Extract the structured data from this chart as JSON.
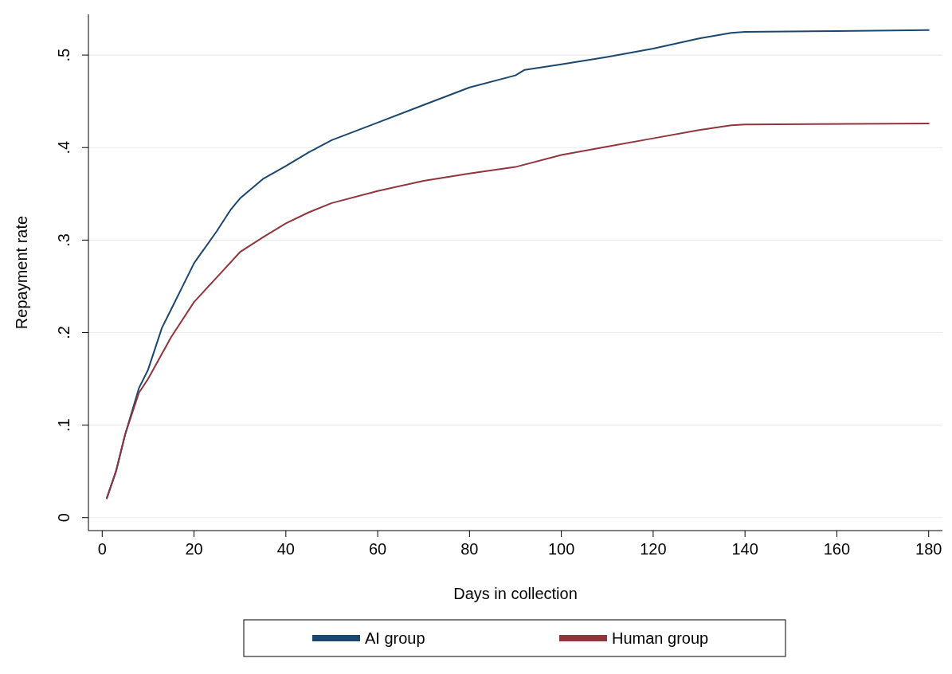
{
  "chart_data": {
    "type": "line",
    "xlabel": "Days in collection",
    "ylabel": "Repayment rate",
    "xlim": [
      -3,
      183
    ],
    "xticks": [
      0,
      20,
      40,
      60,
      80,
      100,
      120,
      140,
      160,
      180
    ],
    "ylim": [
      -0.014,
      0.544
    ],
    "yticks": [
      0,
      {
        "value": 0.1,
        "label": ".1"
      },
      {
        "value": 0.2,
        "label": ".2"
      },
      {
        "value": 0.3,
        "label": ".3"
      },
      {
        "value": 0.4,
        "label": ".4"
      },
      {
        "value": 0.5,
        "label": ".5"
      }
    ],
    "grid": "y",
    "legend": "bottom",
    "line_style": "solid",
    "marker": "none",
    "series": [
      {
        "name": "AI group",
        "color": "#1a476f",
        "x": [
          1,
          3,
          5,
          8,
          10,
          13,
          15,
          18,
          20,
          25,
          28,
          30,
          35,
          40,
          45,
          50,
          60,
          70,
          80,
          90,
          92,
          100,
          110,
          120,
          130,
          137,
          140,
          160,
          180
        ],
        "values": [
          0.021,
          0.05,
          0.09,
          0.14,
          0.16,
          0.205,
          0.225,
          0.255,
          0.275,
          0.31,
          0.333,
          0.345,
          0.366,
          0.38,
          0.395,
          0.408,
          0.427,
          0.446,
          0.465,
          0.478,
          0.484,
          0.49,
          0.498,
          0.507,
          0.518,
          0.524,
          0.525,
          0.526,
          0.527
        ]
      },
      {
        "name": "Human group",
        "color": "#90353b",
        "x": [
          1,
          3,
          5,
          8,
          10,
          15,
          20,
          25,
          30,
          35,
          40,
          45,
          50,
          60,
          70,
          80,
          90,
          100,
          110,
          120,
          130,
          137,
          140,
          180
        ],
        "values": [
          0.021,
          0.05,
          0.09,
          0.135,
          0.15,
          0.195,
          0.233,
          0.26,
          0.287,
          0.303,
          0.318,
          0.33,
          0.34,
          0.353,
          0.364,
          0.372,
          0.379,
          0.392,
          0.401,
          0.41,
          0.419,
          0.424,
          0.425,
          0.426
        ]
      }
    ]
  }
}
